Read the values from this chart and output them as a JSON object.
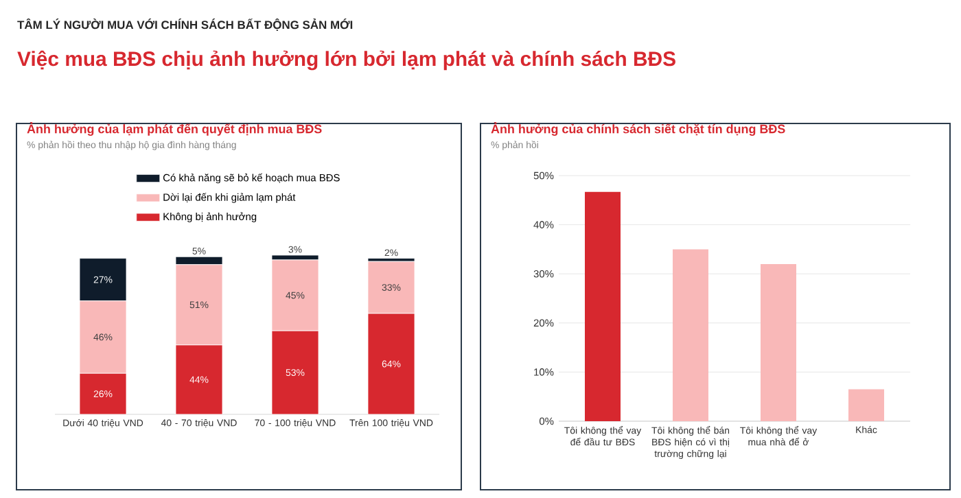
{
  "chart_data": [
    {
      "type": "bar",
      "stacked": true,
      "title": "Ảnh hưởng của lạm phát đến quyết định mua BĐS",
      "subtitle": "% phản hồi theo thu nhập hộ gia đình hàng tháng",
      "annotations": [
        "TÂM LÝ NGƯỜI MUA VỚI CHÍNH SÁCH BẤT ĐỘNG SẢN MỚI",
        "Việc mua BĐS chịu ảnh hưởng lớn bởi lạm phát và chính sách BĐS"
      ],
      "categories": [
        "Dưới 40 triệu VND",
        "40 - 70 triệu VND",
        "70 - 100 triệu VND",
        "Trên 100 triệu VND"
      ],
      "series": [
        {
          "name": "Không bị ảnh hưởng",
          "color": "#d7282f",
          "values": [
            26,
            44,
            53,
            64
          ],
          "value_labels": [
            "26%",
            "44%",
            "53%",
            "64%"
          ]
        },
        {
          "name": "Dời lại đến khi giảm lạm phát",
          "color": "#f9b8b8",
          "values": [
            46,
            51,
            45,
            33
          ],
          "value_labels": [
            "46%",
            "51%",
            "45%",
            "33%"
          ]
        },
        {
          "name": "Có khả năng sẽ bỏ kế hoạch mua BĐS",
          "color": "#0f1c2b",
          "values": [
            27,
            5,
            3,
            2
          ],
          "value_labels": [
            "27%",
            "5%",
            "3%",
            "2%"
          ]
        }
      ],
      "legend": "top"
    },
    {
      "type": "bar",
      "title": "Ảnh hưởng của chính sách siết chặt tín dụng BĐS",
      "subtitle": "% phản hồi",
      "categories": [
        "Tôi không thể vay để đầu tư BĐS",
        "Tôi không thể bán BĐS hiện có vì thị trường chững lại",
        "Tôi không thể vay mua nhà để ở",
        "Khác"
      ],
      "values": [
        46.7,
        35,
        32,
        6.5
      ],
      "colors": [
        "#d7282f",
        "#f9b8b8",
        "#f9b8b8",
        "#f9b8b8"
      ],
      "ylim": [
        0,
        50
      ],
      "yticks": [
        {
          "value": 0,
          "label": "0%"
        },
        {
          "value": 10,
          "label": "10%"
        },
        {
          "value": 20,
          "label": "20%"
        },
        {
          "value": 30,
          "label": "30%"
        },
        {
          "value": 40,
          "label": "40%"
        },
        {
          "value": 50,
          "label": "50%"
        }
      ],
      "grid": "y"
    }
  ]
}
